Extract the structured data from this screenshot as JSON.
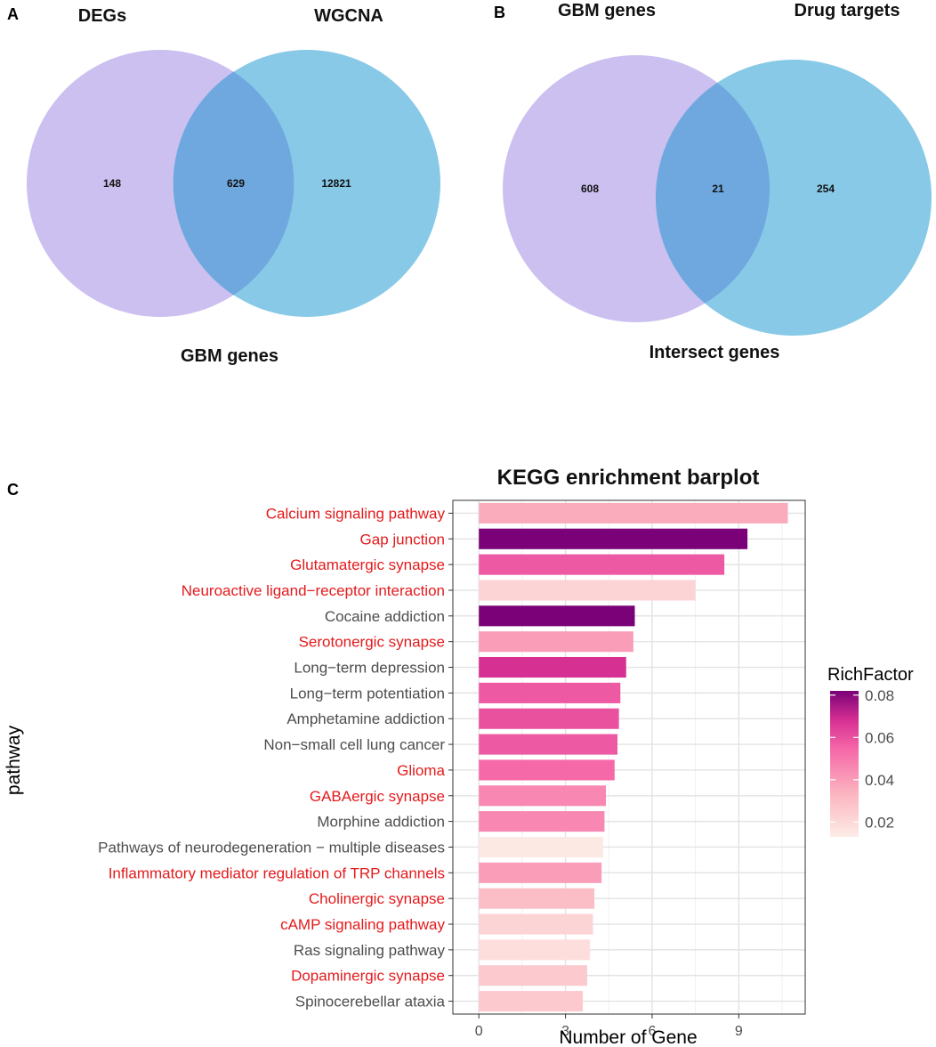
{
  "panels": {
    "a": {
      "letter": "A",
      "left_set": "DEGs",
      "right_set": "WGCNA",
      "result": "GBM genes",
      "counts": {
        "left_only": "148",
        "overlap": "629",
        "right_only": "12821"
      }
    },
    "b": {
      "letter": "B",
      "left_set": "GBM genes",
      "right_set": "Drug targets",
      "result": "Intersect genes",
      "counts": {
        "left_only": "608",
        "overlap": "21",
        "right_only": "254"
      }
    },
    "c": {
      "letter": "C"
    }
  },
  "colors": {
    "venn_left": "#cbc0ef",
    "venn_right": "#87c9e6",
    "venn_overlap": "#6fa8df",
    "highlight_text": "#e31a1c",
    "normal_text": "#4d4d4d",
    "gradient_low": "#fdece6",
    "gradient_high": "#7a0177"
  },
  "chart_data": {
    "type": "bar",
    "orientation": "horizontal",
    "title": "KEGG enrichment barplot",
    "xlabel": "Number of Gene",
    "ylabel": "pathway",
    "xlim": [
      -0.9,
      11.3
    ],
    "xticks": [
      0,
      3,
      6,
      9
    ],
    "grid": true,
    "legend": {
      "title": "RichFactor",
      "placement": "right",
      "ticks": [
        0.02,
        0.04,
        0.06,
        0.08
      ],
      "range": [
        0.013,
        0.082
      ]
    },
    "categories": [
      "Calcium signaling pathway",
      "Gap junction",
      "Glutamatergic synapse",
      "Neuroactive ligand−receptor interaction",
      "Cocaine addiction",
      "Serotonergic synapse",
      "Long−term depression",
      "Long−term potentiation",
      "Amphetamine addiction",
      "Non−small cell lung cancer",
      "Glioma",
      "GABAergic synapse",
      "Morphine addiction",
      "Pathways of neurodegeneration − multiple diseases",
      "Inflammatory mediator regulation of TRP channels",
      "Cholinergic synapse",
      "cAMP signaling pathway",
      "Ras signaling pathway",
      "Dopaminergic synapse",
      "Spinocerebellar ataxia"
    ],
    "values": [
      10.7,
      9.3,
      8.5,
      7.5,
      5.4,
      5.35,
      5.1,
      4.9,
      4.85,
      4.8,
      4.7,
      4.4,
      4.35,
      4.3,
      4.25,
      4.0,
      3.95,
      3.85,
      3.75,
      3.6
    ],
    "rich_factor": [
      0.036,
      0.082,
      0.058,
      0.022,
      0.082,
      0.04,
      0.068,
      0.058,
      0.06,
      0.058,
      0.054,
      0.046,
      0.046,
      0.014,
      0.04,
      0.03,
      0.022,
      0.018,
      0.026,
      0.026
    ],
    "highlighted": [
      true,
      true,
      true,
      true,
      false,
      true,
      false,
      false,
      false,
      false,
      true,
      true,
      false,
      false,
      true,
      true,
      true,
      false,
      true,
      false
    ]
  }
}
